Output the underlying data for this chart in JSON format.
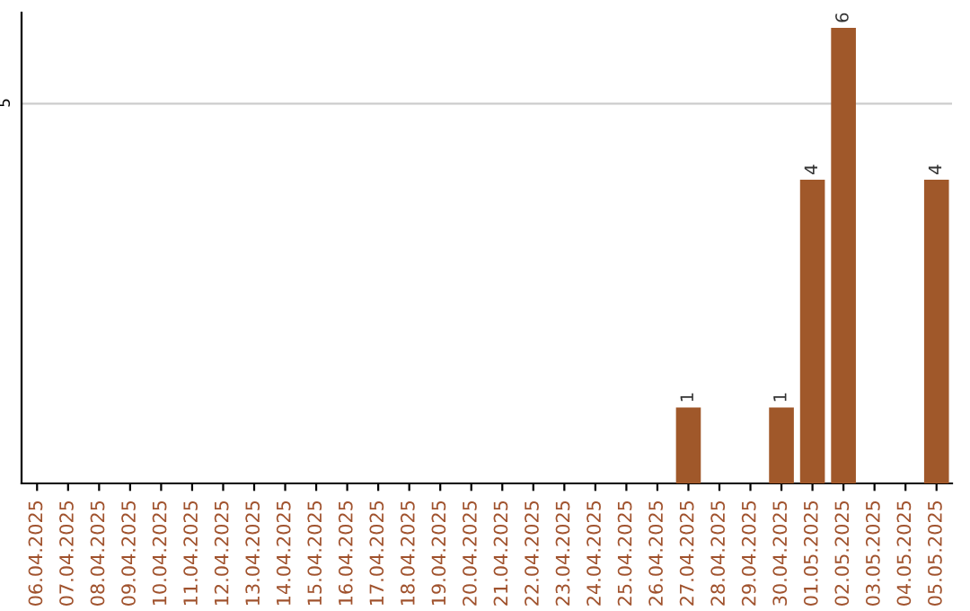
{
  "chart_data": {
    "type": "bar",
    "categories": [
      "06.04.2025",
      "07.04.2025",
      "08.04.2025",
      "09.04.2025",
      "10.04.2025",
      "11.04.2025",
      "12.04.2025",
      "13.04.2025",
      "14.04.2025",
      "15.04.2025",
      "16.04.2025",
      "17.04.2025",
      "18.04.2025",
      "19.04.2025",
      "20.04.2025",
      "21.04.2025",
      "22.04.2025",
      "23.04.2025",
      "24.04.2025",
      "25.04.2025",
      "26.04.2025",
      "27.04.2025",
      "28.04.2025",
      "29.04.2025",
      "30.04.2025",
      "01.05.2025",
      "02.05.2025",
      "03.05.2025",
      "04.05.2025",
      "05.05.2025"
    ],
    "values": [
      null,
      null,
      null,
      null,
      null,
      null,
      null,
      null,
      null,
      null,
      null,
      null,
      null,
      null,
      null,
      null,
      null,
      null,
      null,
      null,
      null,
      1,
      null,
      null,
      1,
      4,
      6,
      null,
      null,
      4
    ],
    "color": "#a0582a",
    "ylim": [
      0,
      6.2
    ],
    "yticks": [
      5
    ],
    "grid": "y",
    "data_labels": true
  }
}
